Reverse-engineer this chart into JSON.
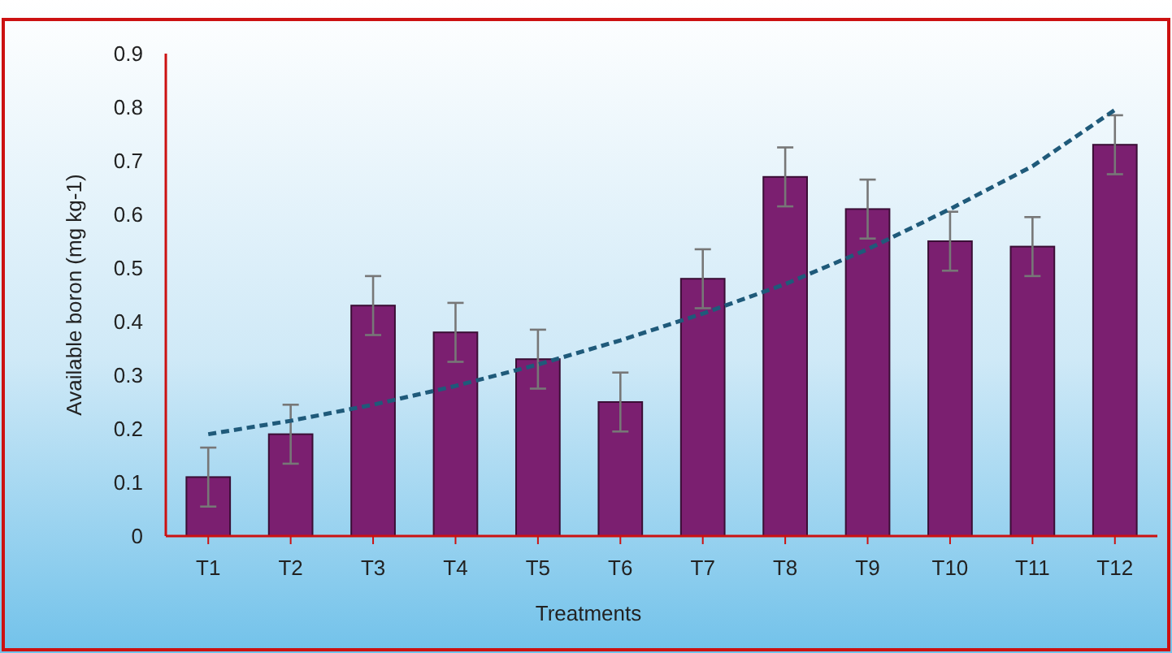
{
  "chart_data": {
    "type": "bar",
    "xlabel": "Treatments",
    "ylabel": "Available boron (mg kg-1)",
    "categories": [
      "T1",
      "T2",
      "T3",
      "T4",
      "T5",
      "T6",
      "T7",
      "T8",
      "T9",
      "T10",
      "T11",
      "T12"
    ],
    "series": [
      {
        "color": "#7b1f70",
        "values": [
          0.11,
          0.19,
          0.43,
          0.38,
          0.33,
          0.25,
          0.48,
          0.67,
          0.61,
          0.55,
          0.54,
          0.73
        ],
        "errors": [
          0.055,
          0.055,
          0.055,
          0.055,
          0.055,
          0.055,
          0.055,
          0.055,
          0.055,
          0.055,
          0.055,
          0.055
        ]
      },
      {
        "type": "line",
        "color": "#1f5a7a",
        "line_style": "dashed",
        "marker": "none",
        "values": [
          0.19,
          0.215,
          0.245,
          0.28,
          0.32,
          0.365,
          0.415,
          0.47,
          0.535,
          0.61,
          0.69,
          0.795
        ]
      }
    ],
    "ylim": [
      0,
      0.9
    ],
    "yticks": [
      0,
      0.1,
      0.2,
      0.3,
      0.4,
      0.5,
      0.6,
      0.7,
      0.8,
      0.9
    ],
    "grid": false
  }
}
